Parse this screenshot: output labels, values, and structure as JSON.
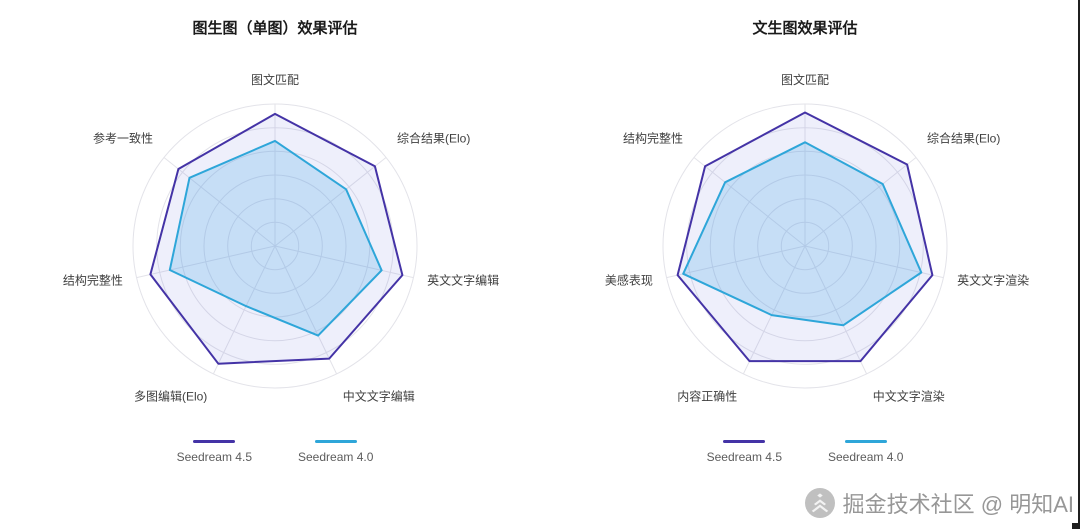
{
  "watermark": {
    "text": "掘金技术社区 @ 明知AI",
    "color": "#8f8f8f"
  },
  "chart_data": [
    {
      "type": "radar",
      "title": "图生图（单图）效果评估",
      "categories": [
        "图文匹配",
        "综合结果(Elo)",
        "英文文字编辑",
        "中文文字编辑",
        "多图编辑(Elo)",
        "结构完整性",
        "参考一致性"
      ],
      "series": [
        {
          "name": "Seedream 4.5",
          "color": "#4433a6",
          "fill": "rgba(90,100,220,0.10)",
          "values": [
            0.93,
            0.9,
            0.92,
            0.88,
            0.92,
            0.9,
            0.87
          ]
        },
        {
          "name": "Seedream 4.0",
          "color": "#2ea6d9",
          "fill": "rgba(80,170,230,0.25)",
          "values": [
            0.74,
            0.64,
            0.77,
            0.7,
            0.47,
            0.76,
            0.77
          ]
        }
      ],
      "rmax": 1,
      "rings": 6,
      "grid": "circular",
      "legend_position": "bottom"
    },
    {
      "type": "radar",
      "title": "文生图效果评估",
      "categories": [
        "图文匹配",
        "综合结果(Elo)",
        "英文文字渲染",
        "中文文字渲染",
        "内容正确性",
        "美感表现",
        "结构完整性"
      ],
      "series": [
        {
          "name": "Seedream 4.5",
          "color": "#4433a6",
          "fill": "rgba(90,100,220,0.10)",
          "values": [
            0.94,
            0.92,
            0.92,
            0.9,
            0.9,
            0.92,
            0.9
          ]
        },
        {
          "name": "Seedream 4.0",
          "color": "#2ea6d9",
          "fill": "rgba(80,170,230,0.25)",
          "values": [
            0.73,
            0.7,
            0.84,
            0.62,
            0.54,
            0.88,
            0.72
          ]
        }
      ],
      "rmax": 1,
      "rings": 6,
      "grid": "circular",
      "legend_position": "bottom"
    }
  ]
}
